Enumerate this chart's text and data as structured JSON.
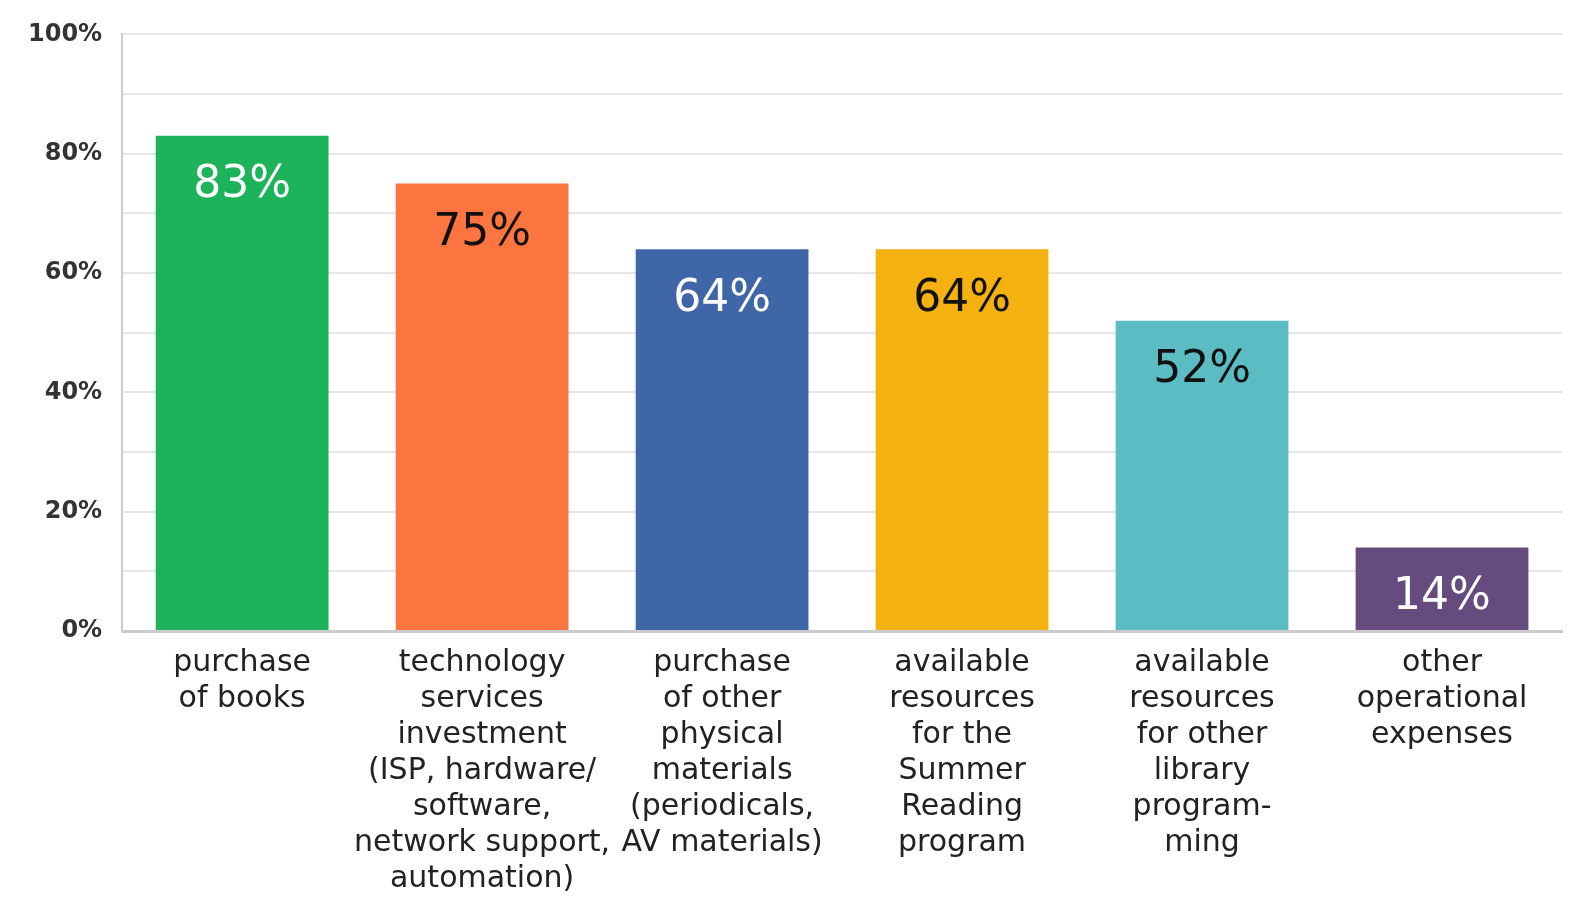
{
  "chart_data": {
    "type": "bar",
    "categories": [
      "purchase\nof books",
      "technology\nservices\ninvestment\n(ISP, hardware/\nsoftware,\nnetwork support,\nautomation)",
      "purchase\nof other\nphysical\nmaterials\n(periodicals,\nAV materials)",
      "available\nresources\nfor the\nSummer\nReading\nprogram",
      "available\nresources\nfor other\nlibrary\nprogram-\nming",
      "other\noperational\nexpenses"
    ],
    "values": [
      83,
      75,
      64,
      64,
      52,
      14
    ],
    "colors": [
      "#1db35a",
      "#fc7540",
      "#3f66a6",
      "#f5b10f",
      "#5bbcc3",
      "#664b7e"
    ],
    "value_labels": [
      "83%",
      "75%",
      "64%",
      "64%",
      "52%",
      "14%"
    ],
    "ylim": [
      0,
      100
    ],
    "yticks": [
      {
        "value": 0,
        "label": "0%"
      },
      {
        "value": 10,
        "label": null
      },
      {
        "value": 20,
        "label": "20%"
      },
      {
        "value": 30,
        "label": null
      },
      {
        "value": 40,
        "label": "40%"
      },
      {
        "value": 50,
        "label": null
      },
      {
        "value": 60,
        "label": "60%"
      },
      {
        "value": 70,
        "label": null
      },
      {
        "value": 80,
        "label": "80%"
      },
      {
        "value": 90,
        "label": null
      },
      {
        "value": 100,
        "label": "100%"
      }
    ],
    "grid": "y"
  }
}
